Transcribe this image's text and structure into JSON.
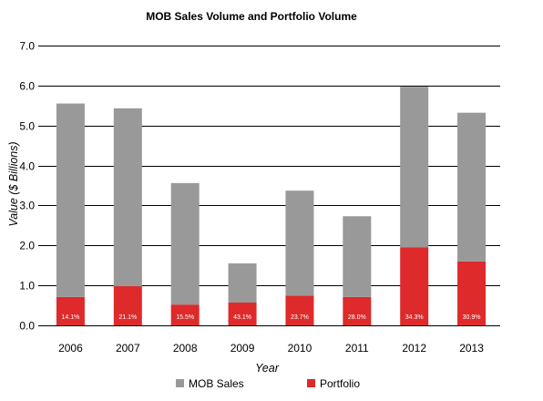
{
  "chart_data": {
    "type": "bar",
    "stacked": true,
    "title": "MOB Sales Volume and Portfolio Volume",
    "xlabel": "Year",
    "ylabel": "Value ($ Billions)",
    "ylim": [
      0,
      7
    ],
    "yticks": [
      "0.0",
      "1.0",
      "2.0",
      "3.0",
      "4.0",
      "5.0",
      "6.0",
      "7.0"
    ],
    "grid": true,
    "legend_position": "bottom",
    "categories": [
      "2006",
      "2007",
      "2008",
      "2009",
      "2010",
      "2011",
      "2012",
      "2013"
    ],
    "series": [
      {
        "name": "Portfolio",
        "color": "#de2a2a",
        "values": [
          0.71,
          0.98,
          0.52,
          0.57,
          0.74,
          0.71,
          1.95,
          1.6
        ]
      },
      {
        "name": "MOB Sales",
        "color": "#999999",
        "values": [
          4.84,
          4.45,
          3.04,
          0.98,
          2.63,
          2.02,
          4.02,
          3.72
        ]
      }
    ],
    "annotations": [
      "14.1%",
      "21.1%",
      "15.5%",
      "43.1%",
      "23.7%",
      "28.0%",
      "34.3%",
      "30.9%"
    ]
  }
}
